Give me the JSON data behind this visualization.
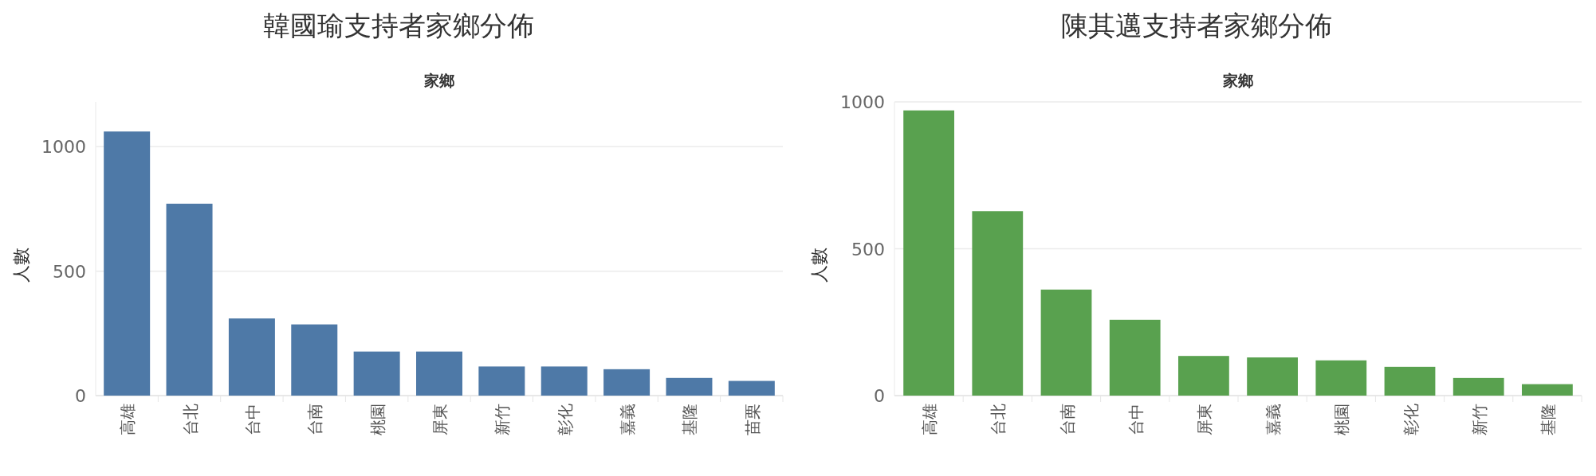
{
  "chart_data": [
    {
      "type": "bar",
      "title": "韓國瑜支持者家鄉分佈",
      "xlabel": "家鄉",
      "ylabel": "人數",
      "categories": [
        "高雄",
        "台北",
        "台中",
        "台南",
        "桃園",
        "屏東",
        "新竹",
        "彰化",
        "嘉義",
        "基隆",
        "苗栗"
      ],
      "values": [
        1061,
        771,
        310,
        286,
        177,
        177,
        117,
        117,
        106,
        71,
        59
      ],
      "color": "#4e79a7",
      "ylim": [
        0,
        1180
      ],
      "yticks": [
        0,
        500,
        1000
      ],
      "grid": "y"
    },
    {
      "type": "bar",
      "title": "陳其邁支持者家鄉分佈",
      "xlabel": "家鄉",
      "ylabel": "人數",
      "categories": [
        "高雄",
        "台北",
        "台南",
        "台中",
        "屏東",
        "嘉義",
        "桃園",
        "彰化",
        "新竹",
        "基隆"
      ],
      "values": [
        971,
        628,
        361,
        258,
        135,
        130,
        120,
        98,
        60,
        39
      ],
      "color": "#59a14f",
      "ylim": [
        0,
        1000
      ],
      "yticks": [
        0,
        500,
        1000
      ],
      "grid": "y"
    }
  ]
}
